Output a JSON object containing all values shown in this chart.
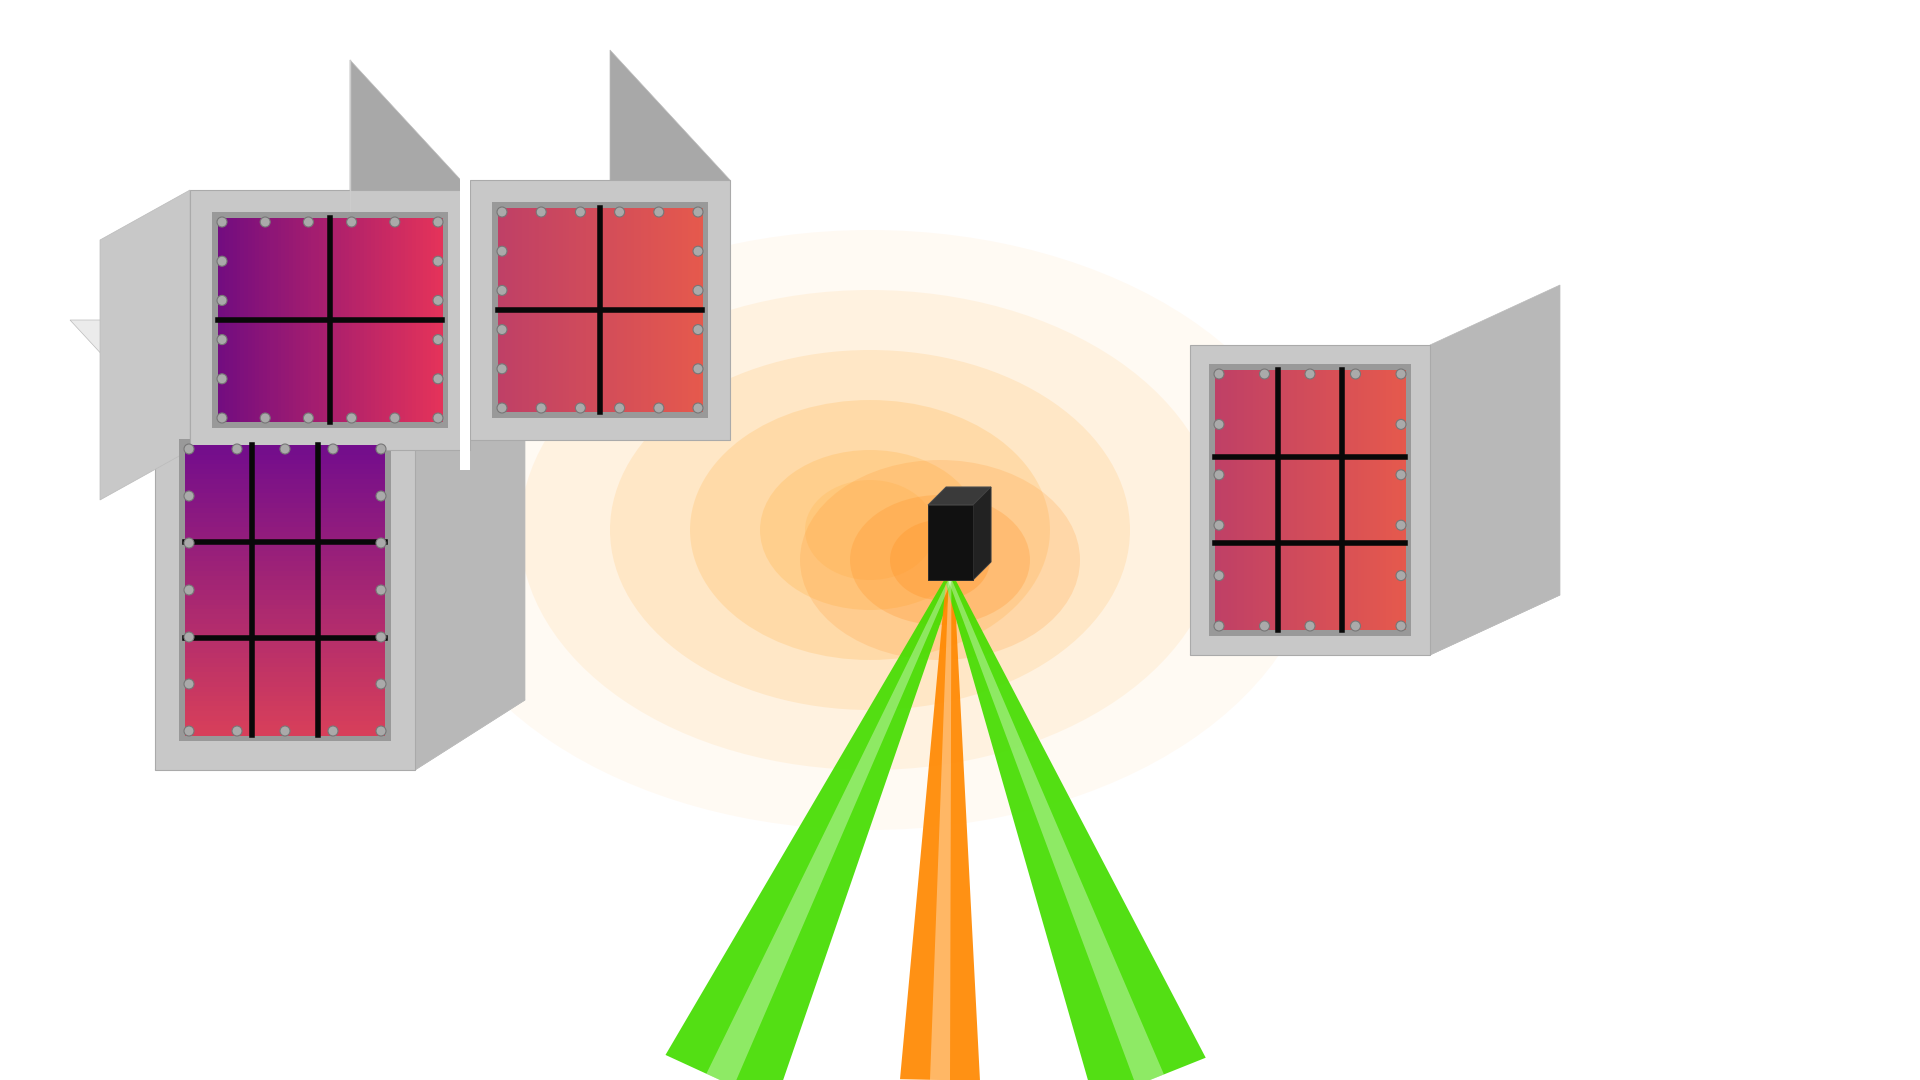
{
  "bg_color": "#ffffff",
  "panel_face": "#c8c8c8",
  "panel_side_light": "#e2e2e2",
  "panel_side_dark": "#a8a8a8",
  "panel_side_mid": "#b8b8b8",
  "panel_top_light": "#ebebeb",
  "frame_color": "#b0b0b0",
  "frame_inner": "#909090",
  "screw_fill": "#aaaaaa",
  "screw_edge": "#777777",
  "green_color": "#44DD00",
  "orange_beam_color": "#FF8800",
  "sample_dark": "#111111",
  "sample_mid": "#2a2a2a",
  "glow_color": "#FFB040",
  "glow_inner": "#FF9020"
}
